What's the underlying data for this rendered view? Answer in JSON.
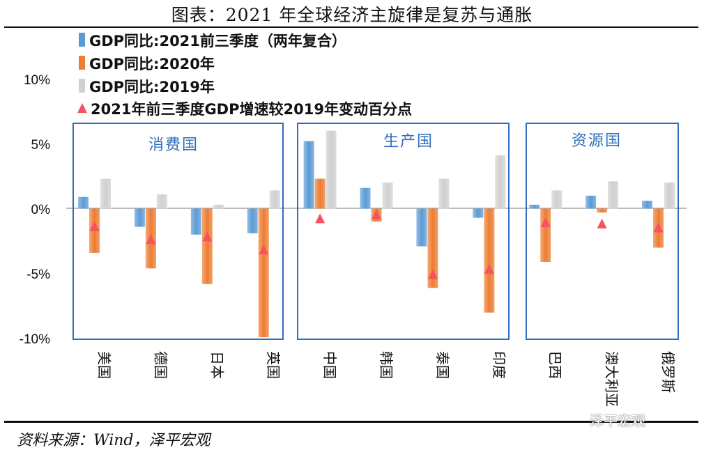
{
  "figure_title": "图表：2021 年全球经济主旋律是复苏与通胀",
  "source_text": "资料来源：Wind，泽平宏观",
  "watermark_text": "泽平宏观",
  "colors": {
    "blue": "#5B9BD5",
    "orange": "#ED7D31",
    "gray": "#D0D0D0",
    "marker": "#F4535F",
    "box": "#2E6EBE"
  },
  "chart_data": {
    "type": "bar",
    "title": "图表：2021 年全球经济主旋律是复苏与通胀",
    "xlabel": "",
    "ylabel": "",
    "ylim": [
      -10,
      10
    ],
    "yticks": [
      10,
      5,
      0,
      -5,
      -10
    ],
    "ytick_labels": [
      "10%",
      "5%",
      "0%",
      "-5%",
      "-10%"
    ],
    "categories": [
      "美国",
      "德国",
      "日本",
      "英国",
      "中国",
      "韩国",
      "泰国",
      "印度",
      "巴西",
      "澳大利亚",
      "俄罗斯"
    ],
    "groups": [
      {
        "name": "消费国",
        "categories": [
          "美国",
          "德国",
          "日本",
          "英国"
        ]
      },
      {
        "name": "生产国",
        "categories": [
          "中国",
          "韩国",
          "泰国",
          "印度"
        ]
      },
      {
        "name": "资源国",
        "categories": [
          "巴西",
          "澳大利亚",
          "俄罗斯"
        ]
      }
    ],
    "series": [
      {
        "name": "GDP同比:2021前三季度（两年复合）",
        "type": "bar",
        "color": "#5B9BD5",
        "values": [
          0.9,
          -1.4,
          -2.0,
          -1.9,
          5.2,
          1.6,
          -2.9,
          -0.7,
          0.3,
          1.0,
          0.6
        ]
      },
      {
        "name": "GDP同比:2020年",
        "type": "bar",
        "color": "#ED7D31",
        "values": [
          -3.4,
          -4.6,
          -5.8,
          -9.9,
          2.3,
          -1.0,
          -6.1,
          -8.0,
          -4.1,
          -0.3,
          -3.0
        ]
      },
      {
        "name": "GDP同比:2019年",
        "type": "bar",
        "color": "#D0D0D0",
        "values": [
          2.3,
          1.1,
          0.3,
          1.4,
          6.0,
          2.0,
          2.3,
          4.1,
          1.4,
          2.1,
          2.0
        ]
      },
      {
        "name": "2021年前三季度GDP增速较2019年变动百分点",
        "type": "marker",
        "color": "#F4535F",
        "values": [
          -1.4,
          -2.4,
          -2.2,
          -3.2,
          -0.8,
          -0.5,
          -5.1,
          -4.7,
          -1.1,
          -1.2,
          -1.5
        ]
      }
    ],
    "legend": "top-left",
    "grid": false
  }
}
